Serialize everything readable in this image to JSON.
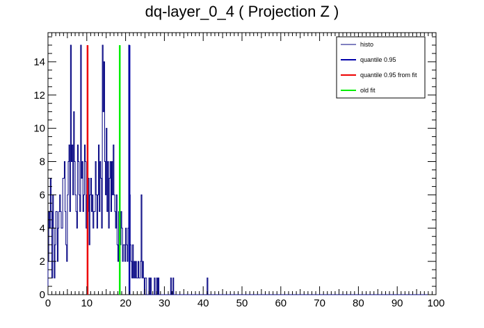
{
  "chart_data": {
    "type": "histogram",
    "title": "dq-layer_0_4 ( Projection Z )",
    "xlabel": "",
    "ylabel": "",
    "xlim": [
      0,
      100
    ],
    "ylim": [
      0,
      15.75
    ],
    "x_tick_labels": [
      "0",
      "10",
      "20",
      "30",
      "40",
      "50",
      "60",
      "70",
      "80",
      "90",
      "100"
    ],
    "y_tick_labels": [
      "0",
      "2",
      "4",
      "6",
      "8",
      "10",
      "12",
      "14"
    ],
    "grid": false,
    "legend_position": "top-right",
    "bin_width": 0.2,
    "histogram": {
      "name": "histo",
      "color": "#000080",
      "bins": [
        [
          0.0,
          2
        ],
        [
          0.2,
          5
        ],
        [
          0.4,
          4
        ],
        [
          0.6,
          7
        ],
        [
          0.8,
          5
        ],
        [
          1.0,
          1
        ],
        [
          1.2,
          6
        ],
        [
          1.4,
          4
        ],
        [
          1.6,
          1
        ],
        [
          1.8,
          3
        ],
        [
          2.0,
          5
        ],
        [
          2.2,
          5
        ],
        [
          2.4,
          2
        ],
        [
          2.6,
          4
        ],
        [
          2.8,
          5
        ],
        [
          3.0,
          6
        ],
        [
          3.2,
          5
        ],
        [
          3.4,
          4
        ],
        [
          3.6,
          4
        ],
        [
          3.8,
          7
        ],
        [
          4.0,
          7
        ],
        [
          4.2,
          8
        ],
        [
          4.4,
          5
        ],
        [
          4.6,
          3
        ],
        [
          4.8,
          2
        ],
        [
          5.0,
          6
        ],
        [
          5.2,
          8
        ],
        [
          5.4,
          9
        ],
        [
          5.6,
          5
        ],
        [
          5.8,
          15
        ],
        [
          6.0,
          8
        ],
        [
          6.2,
          9
        ],
        [
          6.4,
          6
        ],
        [
          6.6,
          11
        ],
        [
          6.8,
          8
        ],
        [
          7.0,
          6
        ],
        [
          7.2,
          5
        ],
        [
          7.4,
          4
        ],
        [
          7.6,
          9
        ],
        [
          7.8,
          8
        ],
        [
          8.0,
          6
        ],
        [
          8.2,
          5
        ],
        [
          8.4,
          15
        ],
        [
          8.6,
          7
        ],
        [
          8.8,
          8
        ],
        [
          9.0,
          5
        ],
        [
          9.2,
          6
        ],
        [
          9.4,
          9
        ],
        [
          9.6,
          8
        ],
        [
          9.8,
          4
        ],
        [
          10.0,
          6
        ],
        [
          10.2,
          5
        ],
        [
          10.4,
          7
        ],
        [
          10.6,
          3
        ],
        [
          10.8,
          6
        ],
        [
          11.0,
          7
        ],
        [
          11.2,
          5
        ],
        [
          11.4,
          6
        ],
        [
          11.6,
          4
        ],
        [
          11.8,
          5
        ],
        [
          12.0,
          5
        ],
        [
          12.2,
          8
        ],
        [
          12.4,
          6
        ],
        [
          12.6,
          4
        ],
        [
          12.8,
          6
        ],
        [
          13.0,
          9
        ],
        [
          13.2,
          5
        ],
        [
          13.4,
          8
        ],
        [
          13.6,
          7
        ],
        [
          13.8,
          4
        ],
        [
          14.0,
          15
        ],
        [
          14.2,
          11
        ],
        [
          14.4,
          14
        ],
        [
          14.6,
          8
        ],
        [
          14.8,
          6
        ],
        [
          15.0,
          10
        ],
        [
          15.2,
          5
        ],
        [
          15.4,
          8
        ],
        [
          15.6,
          4
        ],
        [
          15.8,
          7
        ],
        [
          16.0,
          8
        ],
        [
          16.2,
          5
        ],
        [
          16.4,
          8
        ],
        [
          16.6,
          6
        ],
        [
          16.8,
          9
        ],
        [
          17.0,
          6
        ],
        [
          17.2,
          5
        ],
        [
          17.4,
          4
        ],
        [
          17.6,
          6
        ],
        [
          17.8,
          3
        ],
        [
          18.0,
          2
        ],
        [
          18.2,
          5
        ],
        [
          18.4,
          4
        ],
        [
          18.6,
          3
        ],
        [
          18.8,
          5
        ],
        [
          19.0,
          4
        ],
        [
          19.2,
          2
        ],
        [
          19.4,
          3
        ],
        [
          19.6,
          3
        ],
        [
          19.8,
          2
        ],
        [
          20.0,
          4
        ],
        [
          20.2,
          3
        ],
        [
          20.4,
          2
        ],
        [
          20.6,
          4
        ],
        [
          20.8,
          15
        ],
        [
          21.0,
          6
        ],
        [
          21.2,
          3
        ],
        [
          21.4,
          2
        ],
        [
          21.6,
          1
        ],
        [
          21.8,
          3
        ],
        [
          22.0,
          1
        ],
        [
          22.2,
          2
        ],
        [
          22.4,
          1
        ],
        [
          22.6,
          2
        ],
        [
          22.8,
          1
        ],
        [
          23.0,
          1
        ],
        [
          23.2,
          2
        ],
        [
          23.4,
          1
        ],
        [
          23.6,
          1
        ],
        [
          23.8,
          2
        ],
        [
          24.0,
          6
        ],
        [
          24.2,
          1
        ],
        [
          24.4,
          2
        ],
        [
          24.6,
          1
        ],
        [
          25.0,
          1
        ],
        [
          25.2,
          1
        ],
        [
          26.0,
          1
        ],
        [
          26.4,
          1
        ],
        [
          27.4,
          1
        ],
        [
          28.0,
          1
        ],
        [
          28.4,
          1
        ],
        [
          31.6,
          1
        ],
        [
          32.2,
          1
        ],
        [
          41.0,
          1
        ]
      ]
    },
    "lines": [
      {
        "name": "quantile 0.95",
        "x": 21.0,
        "y": 15.0,
        "color": "#0000aa"
      },
      {
        "name": "quantile 0.95 from fit",
        "x": 10.2,
        "y": 15.0,
        "color": "#ee0000"
      },
      {
        "name": "old fit",
        "x": 18.5,
        "y": 15.0,
        "color": "#00ee00"
      }
    ],
    "legend": [
      {
        "label": "histo",
        "color": "#000080",
        "width": 1
      },
      {
        "label": "quantile 0.95",
        "color": "#0000aa",
        "width": 2
      },
      {
        "label": "quantile 0.95 from fit",
        "color": "#ee0000",
        "width": 2
      },
      {
        "label": "old fit",
        "color": "#00ee00",
        "width": 2
      }
    ]
  }
}
